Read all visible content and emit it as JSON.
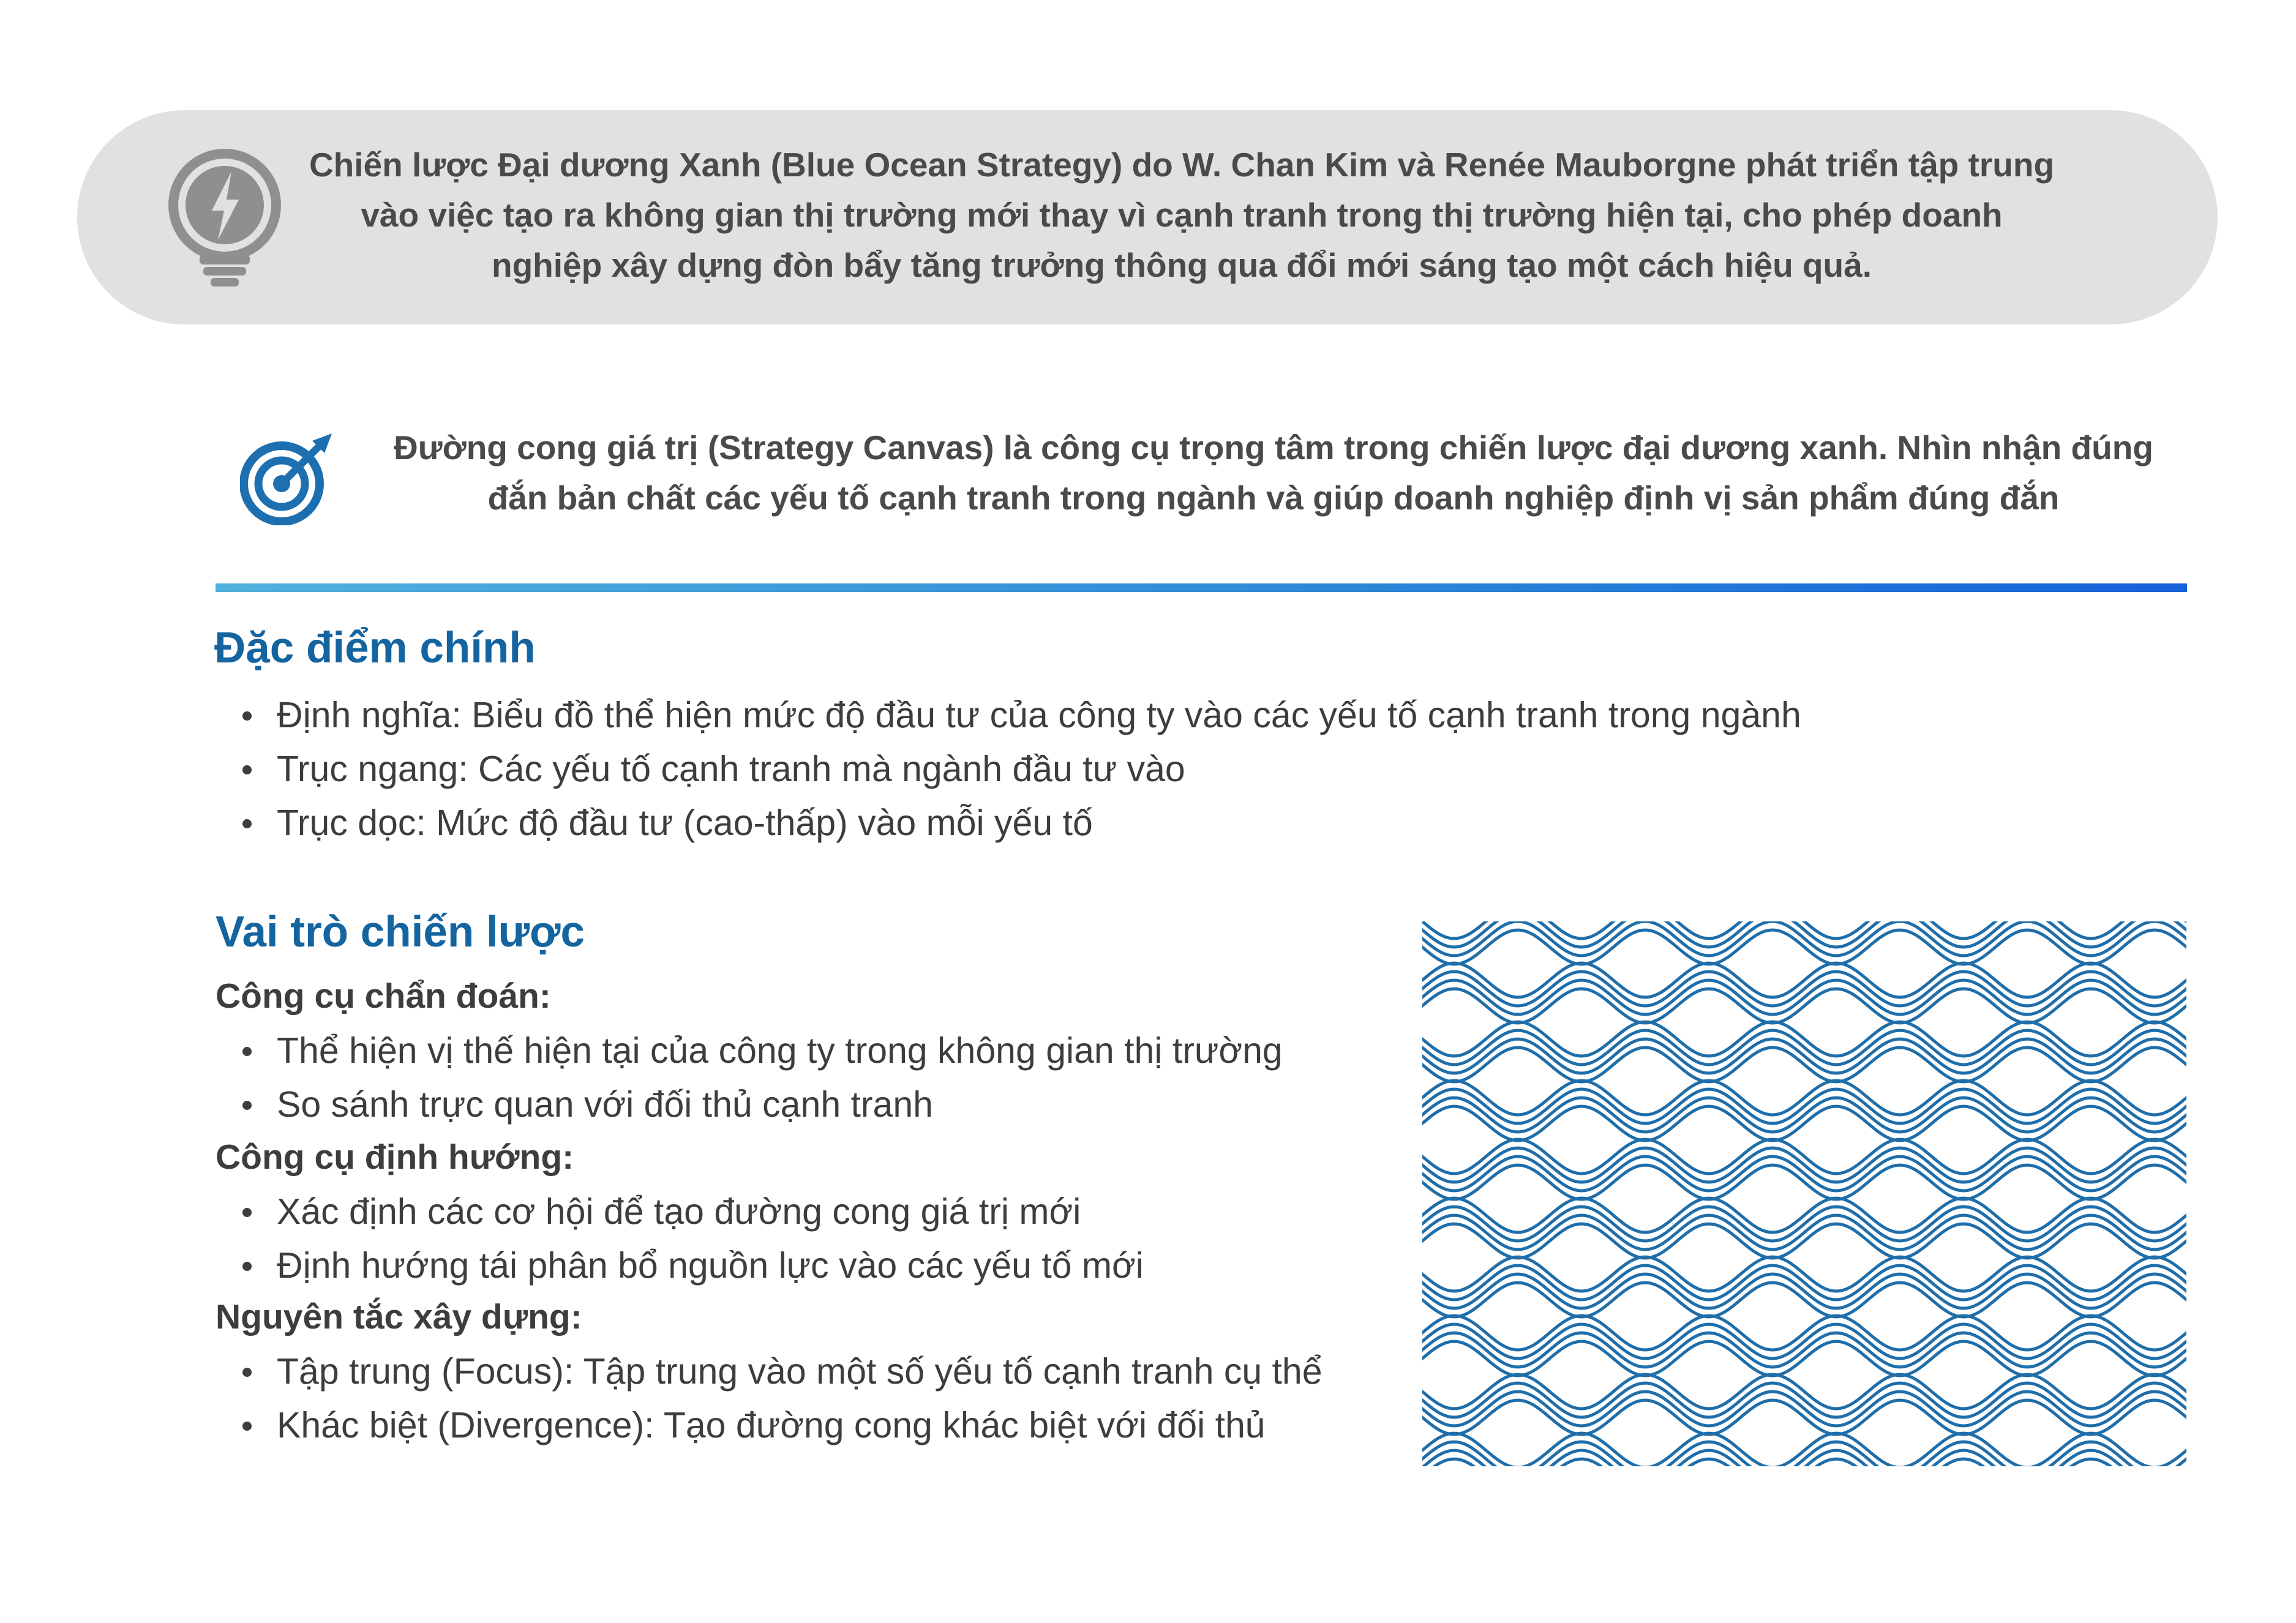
{
  "callout": {
    "icon": "lightbulb-bolt-icon",
    "text": "Chiến lược Đại dương Xanh (Blue Ocean Strategy) do W. Chan Kim và Renée Mauborgne phát triển tập trung vào việc tạo ra không gian thị trường mới thay vì cạnh tranh trong thị trường hiện tại, cho phép doanh nghiệp xây dựng đòn bẩy tăng trưởng thông qua đổi mới sáng tạo một cách hiệu quả."
  },
  "canvas_note": {
    "icon": "target-arrow-icon",
    "text": "Đường cong giá trị (Strategy Canvas) là công cụ trọng tâm trong chiến lược đại dương xanh. Nhìn nhận đúng đắn bản chất các yếu tố cạnh tranh trong ngành và giúp doanh nghiệp định vị sản phẩm đúng đắn"
  },
  "features": {
    "heading": "Đặc điểm chính",
    "items": [
      "Định nghĩa: Biểu đồ thể hiện mức độ đầu tư của công ty vào các yếu tố cạnh tranh trong ngành",
      "Trục ngang: Các yếu tố cạnh tranh mà ngành đầu tư vào",
      "Trục dọc: Mức độ đầu tư (cao-thấp) vào mỗi yếu tố"
    ]
  },
  "roles": {
    "heading": "Vai trò chiến lược",
    "groups": [
      {
        "title": "Công cụ chẩn đoán:",
        "items": [
          "Thể hiện vị thế hiện tại của công ty trong không gian thị trường",
          "So sánh trực quan với đối thủ cạnh tranh"
        ]
      },
      {
        "title": "Công cụ định hướng:",
        "items": [
          "Xác định các cơ hội để tạo đường cong giá trị mới",
          "Định hướng tái phân bổ nguồn lực vào các yếu tố mới"
        ]
      },
      {
        "title": "Nguyên tắc xây dựng:",
        "items": [
          "Tập trung (Focus): Tập trung vào một số yếu tố cạnh tranh cụ thể",
          "Khác biệt (Divergence): Tạo đường cong khác biệt với đối thủ"
        ]
      }
    ]
  },
  "colors": {
    "accent": "#1464a0",
    "wave": "#1f6ea9",
    "callout_bg": "#e1e1e1",
    "icon_gray": "#8f8f8f"
  },
  "illustration": {
    "icon": "wave-pattern-icon"
  }
}
